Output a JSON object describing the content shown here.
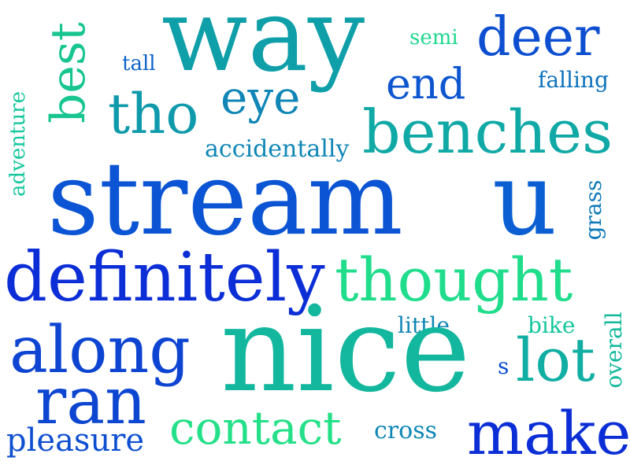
{
  "cloud": {
    "way": "way",
    "best": "best",
    "deer": "deer",
    "semi": "semi",
    "tall": "tall",
    "end": "end",
    "falling": "falling",
    "eye": "eye",
    "tho": "tho",
    "adventure": "adventure",
    "benches": "benches",
    "accidentally": "accidentally",
    "stream": "stream",
    "u": "u",
    "grass": "grass",
    "definitely": "definitely",
    "thought": "thought",
    "little": "little",
    "bike": "bike",
    "along": "along",
    "nice": "nice",
    "overall": "overall",
    "s": "s",
    "lot": "lot",
    "ran": "ran",
    "contact": "contact",
    "pleasure": "pleasure",
    "cross": "cross",
    "make": "make"
  },
  "colors": {
    "blue": "#0b2ed6",
    "royal": "#0d58d4",
    "steel": "#0f7ab8",
    "teal": "#0fa3a8",
    "aqua": "#10b9a0",
    "mint": "#12d48c",
    "green": "#20e08a"
  }
}
